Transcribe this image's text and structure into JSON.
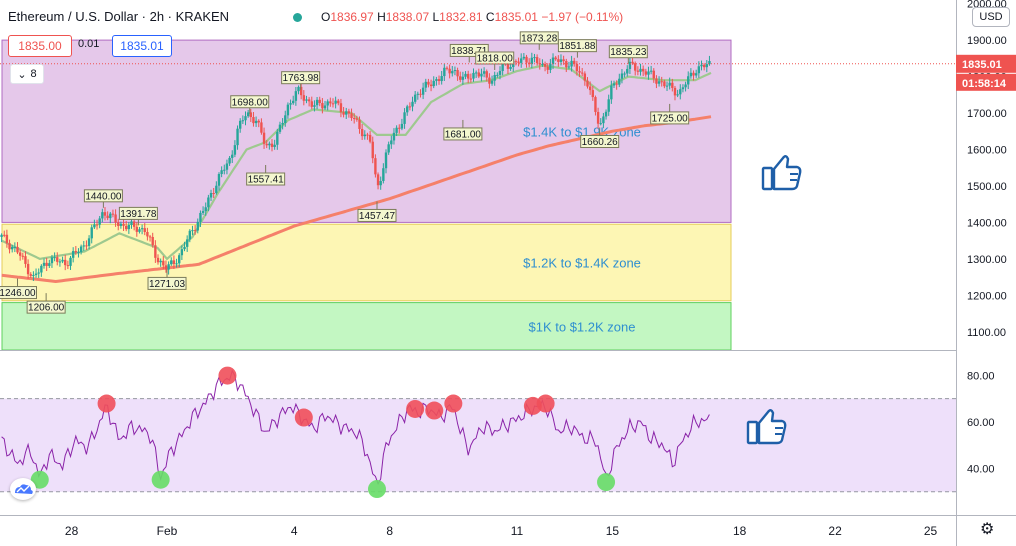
{
  "header": {
    "symbol": "Ethereum / U.S. Dollar · 2h · KRAKEN",
    "o_label": "O",
    "o": "1836.97",
    "h_label": "H",
    "h": "1838.07",
    "l_label": "L",
    "l": "1832.81",
    "c_label": "C",
    "c": "1835.01",
    "change": "−1.97 (−0.11%)",
    "sell_price": "1835.00",
    "spread": "0.01",
    "buy_price": "1835.01",
    "indicators_count": "8",
    "currency": "USD"
  },
  "colors": {
    "up": "#26a69a",
    "down": "#ef5350",
    "ma_slow": "#f5806a",
    "ma_fast": "#9ec98f",
    "zone_top": "#e5c8ea",
    "zone_mid": "#fdf6b4",
    "zone_low": "#c3f7c2",
    "rsi_line": "#8a23a8",
    "rsi_band": "#eee0fa",
    "zone_text": "#2f8fd0"
  },
  "chart_data": [
    {
      "type": "candlestick",
      "title": "Ethereum / U.S. Dollar · 2h · KRAKEN",
      "y_ticks": [
        1100,
        1200,
        1300,
        1400,
        1500,
        1600,
        1700,
        1800,
        1900,
        2000
      ],
      "y_tick_labels": [
        "1100.00",
        "1200.00",
        "1300.00",
        "1400.00",
        "1500.00",
        "1600.00",
        "1700.00",
        "1800.00",
        "1900.00",
        "2000.00"
      ],
      "ylim": [
        1050,
        2010
      ],
      "x_ticks": [
        28,
        31,
        35,
        38,
        42,
        45,
        49,
        52,
        55
      ],
      "x_tick_labels": [
        "28",
        "Feb",
        "4",
        "8",
        "11",
        "15",
        "18",
        "22",
        "25"
      ],
      "xlim": [
        25.75,
        55.8
      ],
      "last_price": "1835.01",
      "countdown": "01:58:14",
      "price_anchors": [
        [
          25.8,
          1360
        ],
        [
          26.3,
          1320
        ],
        [
          26.8,
          1248
        ],
        [
          27.3,
          1300
        ],
        [
          27.8,
          1288
        ],
        [
          28.4,
          1338
        ],
        [
          29.0,
          1430
        ],
        [
          29.5,
          1395
        ],
        [
          30.3,
          1380
        ],
        [
          30.7,
          1300
        ],
        [
          31.0,
          1272
        ],
        [
          31.4,
          1310
        ],
        [
          31.8,
          1380
        ],
        [
          32.2,
          1440
        ],
        [
          32.6,
          1520
        ],
        [
          33.0,
          1575
        ],
        [
          33.2,
          1650
        ],
        [
          33.5,
          1700
        ],
        [
          33.8,
          1680
        ],
        [
          34.1,
          1610
        ],
        [
          34.4,
          1620
        ],
        [
          34.8,
          1720
        ],
        [
          35.1,
          1760
        ],
        [
          35.6,
          1720
        ],
        [
          36.2,
          1730
        ],
        [
          36.8,
          1690
        ],
        [
          37.4,
          1620
        ],
        [
          37.6,
          1490
        ],
        [
          38.0,
          1620
        ],
        [
          38.5,
          1700
        ],
        [
          38.9,
          1760
        ],
        [
          39.3,
          1780
        ],
        [
          39.7,
          1810
        ],
        [
          40.0,
          1820
        ],
        [
          40.3,
          1790
        ],
        [
          40.7,
          1812
        ],
        [
          41.2,
          1790
        ],
        [
          41.6,
          1830
        ],
        [
          42.0,
          1840
        ],
        [
          42.5,
          1850
        ],
        [
          42.8,
          1825
        ],
        [
          43.2,
          1845
        ],
        [
          43.7,
          1835
        ],
        [
          44.2,
          1790
        ],
        [
          44.6,
          1660
        ],
        [
          45.0,
          1770
        ],
        [
          45.5,
          1830
        ],
        [
          46.0,
          1815
        ],
        [
          46.6,
          1780
        ],
        [
          47.1,
          1755
        ],
        [
          47.6,
          1820
        ],
        [
          48.1,
          1835
        ]
      ],
      "fast_ma_anchors": [
        [
          25.8,
          1350
        ],
        [
          27.0,
          1300
        ],
        [
          28.4,
          1320
        ],
        [
          29.5,
          1370
        ],
        [
          30.7,
          1330
        ],
        [
          31.0,
          1300
        ],
        [
          31.8,
          1360
        ],
        [
          32.6,
          1480
        ],
        [
          33.5,
          1600
        ],
        [
          34.1,
          1620
        ],
        [
          34.8,
          1680
        ],
        [
          35.6,
          1710
        ],
        [
          36.8,
          1700
        ],
        [
          37.6,
          1640
        ],
        [
          38.5,
          1640
        ],
        [
          39.3,
          1730
        ],
        [
          40.3,
          1780
        ],
        [
          41.2,
          1790
        ],
        [
          42.0,
          1815
        ],
        [
          42.8,
          1830
        ],
        [
          43.7,
          1820
        ],
        [
          44.6,
          1760
        ],
        [
          45.5,
          1800
        ],
        [
          46.6,
          1790
        ],
        [
          47.6,
          1790
        ],
        [
          48.1,
          1810
        ]
      ],
      "slow_ma_anchors": [
        [
          25.8,
          1255
        ],
        [
          27.5,
          1238
        ],
        [
          29.5,
          1260
        ],
        [
          31.0,
          1275
        ],
        [
          32.0,
          1285
        ],
        [
          33.0,
          1320
        ],
        [
          34.0,
          1355
        ],
        [
          35.0,
          1390
        ],
        [
          36.0,
          1415
        ],
        [
          37.0,
          1440
        ],
        [
          38.0,
          1465
        ],
        [
          39.0,
          1495
        ],
        [
          40.0,
          1525
        ],
        [
          41.0,
          1555
        ],
        [
          42.0,
          1585
        ],
        [
          43.0,
          1610
        ],
        [
          44.0,
          1630
        ],
        [
          45.0,
          1650
        ],
        [
          46.0,
          1665
        ],
        [
          47.0,
          1675
        ],
        [
          48.1,
          1690
        ]
      ],
      "price_labels": [
        {
          "x": 26.3,
          "y": 1246,
          "label": "1246.00",
          "pos": "below"
        },
        {
          "x": 27.2,
          "y": 1206,
          "label": "1206.00",
          "pos": "below"
        },
        {
          "x": 29.0,
          "y": 1440,
          "label": "1440.00",
          "pos": "above"
        },
        {
          "x": 30.1,
          "y": 1391.78,
          "label": "1391.78",
          "pos": "above"
        },
        {
          "x": 31.0,
          "y": 1271.03,
          "label": "1271.03",
          "pos": "below"
        },
        {
          "x": 33.6,
          "y": 1698,
          "label": "1698.00",
          "pos": "above"
        },
        {
          "x": 34.1,
          "y": 1557.41,
          "label": "1557.41",
          "pos": "below"
        },
        {
          "x": 35.2,
          "y": 1763.98,
          "label": "1763.98",
          "pos": "above"
        },
        {
          "x": 37.6,
          "y": 1457.47,
          "label": "1457.47",
          "pos": "below"
        },
        {
          "x": 40.5,
          "y": 1838.71,
          "label": "1838.71",
          "pos": "above"
        },
        {
          "x": 40.3,
          "y": 1681,
          "label": "1681.00",
          "pos": "below"
        },
        {
          "x": 41.3,
          "y": 1818,
          "label": "1818.00",
          "pos": "above"
        },
        {
          "x": 42.7,
          "y": 1873.28,
          "label": "1873.28",
          "pos": "above"
        },
        {
          "x": 43.9,
          "y": 1851.88,
          "label": "1851.88",
          "pos": "above"
        },
        {
          "x": 44.6,
          "y": 1660.26,
          "label": "1660.26",
          "pos": "below"
        },
        {
          "x": 45.5,
          "y": 1835.23,
          "label": "1835.23",
          "pos": "above"
        },
        {
          "x": 46.8,
          "y": 1725,
          "label": "1725.00",
          "pos": "below"
        }
      ],
      "zones": [
        {
          "label": "$1.4K to $1.9K zone",
          "low": 1400,
          "high": 1900,
          "color": "#e5c8ea"
        },
        {
          "label": "$1.2K to $1.4K zone",
          "low": 1185,
          "high": 1395,
          "color": "#fdf6b4"
        },
        {
          "label": "$1K to $1.2K zone",
          "low": 1050,
          "high": 1180,
          "color": "#c3f7c2"
        }
      ]
    },
    {
      "type": "line",
      "title": "",
      "y_ticks": [
        40,
        60,
        80
      ],
      "y_tick_labels": [
        "40.00",
        "60.00",
        "80.00"
      ],
      "ylim": [
        20,
        90
      ],
      "band": [
        30,
        70
      ],
      "series": [
        {
          "values": [
            [
              25.8,
              52
            ],
            [
              26.3,
              42
            ],
            [
              26.7,
              48
            ],
            [
              27.0,
              36
            ],
            [
              27.3,
              46
            ],
            [
              27.7,
              41
            ],
            [
              28.1,
              52
            ],
            [
              28.5,
              49
            ],
            [
              28.8,
              57
            ],
            [
              29.1,
              67
            ],
            [
              29.5,
              52
            ],
            [
              29.9,
              58
            ],
            [
              30.3,
              56
            ],
            [
              30.5,
              54
            ],
            [
              30.8,
              36
            ],
            [
              31.1,
              47
            ],
            [
              31.5,
              55
            ],
            [
              31.8,
              62
            ],
            [
              32.2,
              68
            ],
            [
              32.6,
              76
            ],
            [
              33.0,
              80
            ],
            [
              33.3,
              76
            ],
            [
              33.7,
              66
            ],
            [
              34.1,
              55
            ],
            [
              34.5,
              62
            ],
            [
              34.9,
              67
            ],
            [
              35.3,
              61
            ],
            [
              35.6,
              57
            ],
            [
              36.0,
              63
            ],
            [
              36.5,
              58
            ],
            [
              37.0,
              55
            ],
            [
              37.3,
              46
            ],
            [
              37.6,
              32
            ],
            [
              37.9,
              50
            ],
            [
              38.3,
              60
            ],
            [
              38.6,
              66
            ],
            [
              38.9,
              64
            ],
            [
              39.2,
              66
            ],
            [
              39.6,
              62
            ],
            [
              40.0,
              67
            ],
            [
              40.2,
              57
            ],
            [
              40.5,
              48
            ],
            [
              40.9,
              58
            ],
            [
              41.3,
              56
            ],
            [
              41.7,
              59
            ],
            [
              42.1,
              62
            ],
            [
              42.5,
              66
            ],
            [
              42.9,
              67
            ],
            [
              43.3,
              56
            ],
            [
              43.7,
              58
            ],
            [
              44.1,
              53
            ],
            [
              44.5,
              52
            ],
            [
              44.8,
              35
            ],
            [
              45.1,
              48
            ],
            [
              45.5,
              57
            ],
            [
              45.9,
              60
            ],
            [
              46.2,
              53
            ],
            [
              46.6,
              50
            ],
            [
              46.9,
              42
            ],
            [
              47.2,
              52
            ],
            [
              47.6,
              60
            ],
            [
              48.1,
              61
            ]
          ]
        }
      ],
      "overbought_points": [
        29.1,
        32.9,
        35.3,
        38.8,
        39.4,
        40.0,
        42.5,
        42.9
      ],
      "oversold_points": [
        27.0,
        30.8,
        37.6,
        44.8
      ]
    }
  ]
}
